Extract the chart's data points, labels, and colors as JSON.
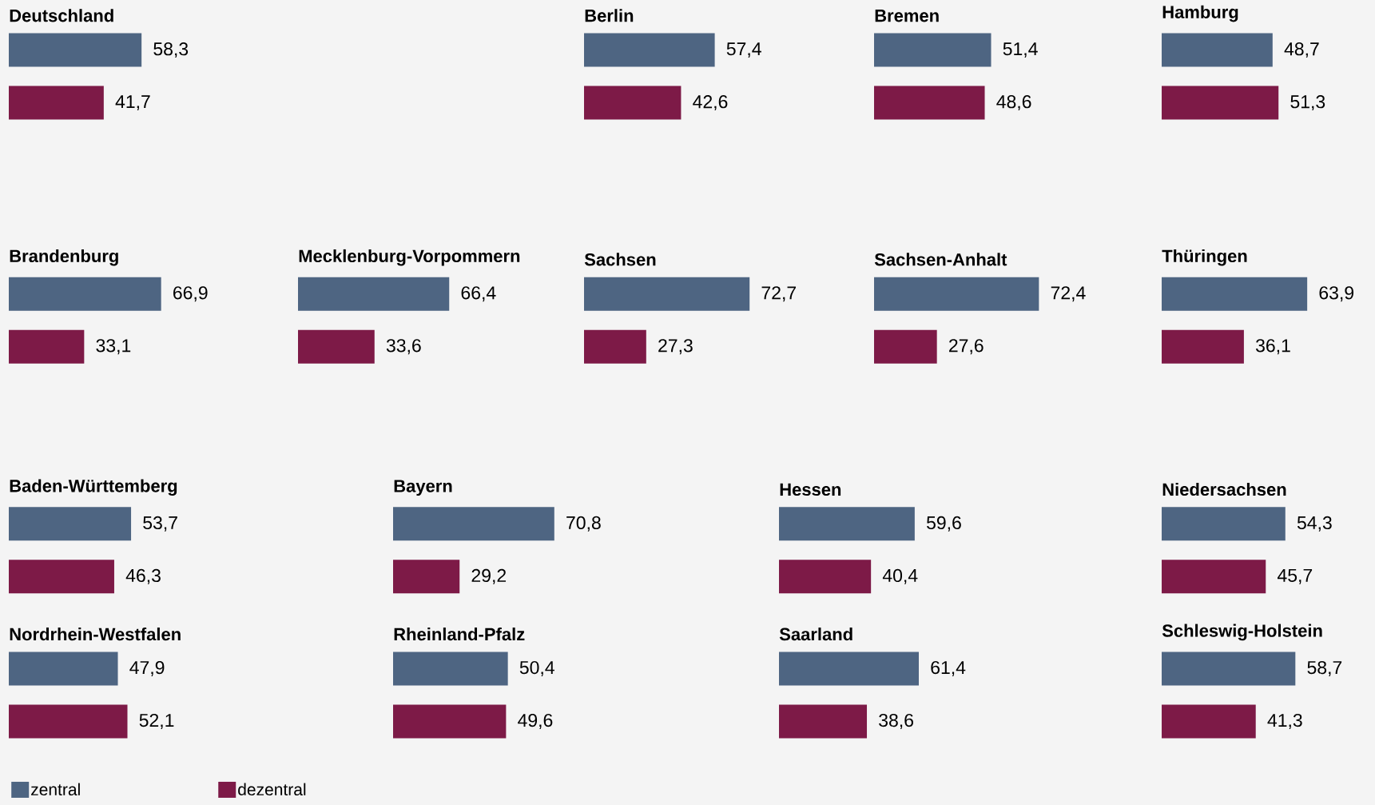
{
  "chart_data": [
    {
      "type": "bar",
      "orientation": "horizontal",
      "title": "Deutschland",
      "categories": [
        null
      ],
      "series": [
        {
          "color": "#4e6582",
          "values": [
            58.3
          ],
          "value_labels": [
            "58,3"
          ]
        },
        {
          "color": "#7d1a47",
          "values": [
            41.7
          ],
          "value_labels": [
            "41,7"
          ]
        }
      ]
    },
    {
      "type": "bar",
      "orientation": "horizontal",
      "title": "Berlin",
      "categories": [
        null
      ],
      "series": [
        {
          "color": "#4e6582",
          "values": [
            57.4
          ],
          "value_labels": [
            "57,4"
          ]
        },
        {
          "color": "#7d1a47",
          "values": [
            42.6
          ],
          "value_labels": [
            "42,6"
          ]
        }
      ]
    },
    {
      "type": "bar",
      "orientation": "horizontal",
      "title": "Bremen",
      "categories": [
        null
      ],
      "series": [
        {
          "color": "#4e6582",
          "values": [
            51.4
          ],
          "value_labels": [
            "51,4"
          ]
        },
        {
          "color": "#7d1a47",
          "values": [
            48.6
          ],
          "value_labels": [
            "48,6"
          ]
        }
      ]
    },
    {
      "type": "bar",
      "orientation": "horizontal",
      "title": "Hamburg",
      "categories": [
        null
      ],
      "series": [
        {
          "color": "#4e6582",
          "values": [
            48.7
          ],
          "value_labels": [
            "48,7"
          ]
        },
        {
          "color": "#7d1a47",
          "values": [
            51.3
          ],
          "value_labels": [
            "51,3"
          ]
        }
      ]
    },
    {
      "type": "bar",
      "orientation": "horizontal",
      "title": "Brandenburg",
      "categories": [
        null
      ],
      "series": [
        {
          "color": "#4e6582",
          "values": [
            66.9
          ],
          "value_labels": [
            "66,9"
          ]
        },
        {
          "color": "#7d1a47",
          "values": [
            33.1
          ],
          "value_labels": [
            "33,1"
          ]
        }
      ]
    },
    {
      "type": "bar",
      "orientation": "horizontal",
      "title": "Mecklenburg-Vorpommern",
      "categories": [
        null
      ],
      "series": [
        {
          "color": "#4e6582",
          "values": [
            66.4
          ],
          "value_labels": [
            "66,4"
          ]
        },
        {
          "color": "#7d1a47",
          "values": [
            33.6
          ],
          "value_labels": [
            "33,6"
          ]
        }
      ]
    },
    {
      "type": "bar",
      "orientation": "horizontal",
      "title": "Sachsen",
      "categories": [
        null
      ],
      "series": [
        {
          "color": "#4e6582",
          "values": [
            72.7
          ],
          "value_labels": [
            "72,7"
          ]
        },
        {
          "color": "#7d1a47",
          "values": [
            27.3
          ],
          "value_labels": [
            "27,3"
          ]
        }
      ]
    },
    {
      "type": "bar",
      "orientation": "horizontal",
      "title": "Sachsen-Anhalt",
      "categories": [
        null
      ],
      "series": [
        {
          "color": "#4e6582",
          "values": [
            72.4
          ],
          "value_labels": [
            "72,4"
          ]
        },
        {
          "color": "#7d1a47",
          "values": [
            27.6
          ],
          "value_labels": [
            "27,6"
          ]
        }
      ]
    },
    {
      "type": "bar",
      "orientation": "horizontal",
      "title": "Thüringen",
      "categories": [
        null
      ],
      "series": [
        {
          "color": "#4e6582",
          "values": [
            63.9
          ],
          "value_labels": [
            "63,9"
          ]
        },
        {
          "color": "#7d1a47",
          "values": [
            36.1
          ],
          "value_labels": [
            "36,1"
          ]
        }
      ]
    },
    {
      "type": "bar",
      "orientation": "horizontal",
      "title": "Baden-Württemberg",
      "categories": [
        null
      ],
      "series": [
        {
          "color": "#4e6582",
          "values": [
            53.7
          ],
          "value_labels": [
            "53,7"
          ]
        },
        {
          "color": "#7d1a47",
          "values": [
            46.3
          ],
          "value_labels": [
            "46,3"
          ]
        }
      ]
    },
    {
      "type": "bar",
      "orientation": "horizontal",
      "title": "Bayern",
      "categories": [
        null
      ],
      "series": [
        {
          "color": "#4e6582",
          "values": [
            70.8
          ],
          "value_labels": [
            "70,8"
          ]
        },
        {
          "color": "#7d1a47",
          "values": [
            29.2
          ],
          "value_labels": [
            "29,2"
          ]
        }
      ]
    },
    {
      "type": "bar",
      "orientation": "horizontal",
      "title": "Hessen",
      "categories": [
        null
      ],
      "series": [
        {
          "color": "#4e6582",
          "values": [
            59.6
          ],
          "value_labels": [
            "59,6"
          ]
        },
        {
          "color": "#7d1a47",
          "values": [
            40.4
          ],
          "value_labels": [
            "40,4"
          ]
        }
      ]
    },
    {
      "type": "bar",
      "orientation": "horizontal",
      "title": "Niedersachsen",
      "categories": [
        null
      ],
      "series": [
        {
          "color": "#4e6582",
          "values": [
            54.3
          ],
          "value_labels": [
            "54,3"
          ]
        },
        {
          "color": "#7d1a47",
          "values": [
            45.7
          ],
          "value_labels": [
            "45,7"
          ]
        }
      ]
    },
    {
      "type": "bar",
      "orientation": "horizontal",
      "title": "Nordrhein-Westfalen",
      "categories": [
        null
      ],
      "legend": "bottom",
      "series": [
        {
          "name": "zentral",
          "color": "#4e6582",
          "values": [
            47.9
          ],
          "value_labels": [
            "47,9"
          ]
        },
        {
          "name": "dezentral",
          "color": "#7d1a47",
          "values": [
            52.1
          ],
          "value_labels": [
            "52,1"
          ]
        }
      ]
    },
    {
      "type": "bar",
      "orientation": "horizontal",
      "title": "Rheinland-Pfalz",
      "categories": [
        null
      ],
      "series": [
        {
          "color": "#4e6582",
          "values": [
            50.4
          ],
          "value_labels": [
            "50,4"
          ]
        },
        {
          "color": "#7d1a47",
          "values": [
            49.6
          ],
          "value_labels": [
            "49,6"
          ]
        }
      ]
    },
    {
      "type": "bar",
      "orientation": "horizontal",
      "title": "Saarland",
      "categories": [
        null
      ],
      "series": [
        {
          "color": "#4e6582",
          "values": [
            61.4
          ],
          "value_labels": [
            "61,4"
          ]
        },
        {
          "color": "#7d1a47",
          "values": [
            38.6
          ],
          "value_labels": [
            "38,6"
          ]
        }
      ]
    },
    {
      "type": "bar",
      "orientation": "horizontal",
      "title": "Schleswig-Holstein",
      "categories": [
        null
      ],
      "series": [
        {
          "color": "#4e6582",
          "values": [
            58.7
          ],
          "value_labels": [
            "58,7"
          ]
        },
        {
          "color": "#7d1a47",
          "values": [
            41.3
          ],
          "value_labels": [
            "41,3"
          ]
        }
      ]
    }
  ]
}
